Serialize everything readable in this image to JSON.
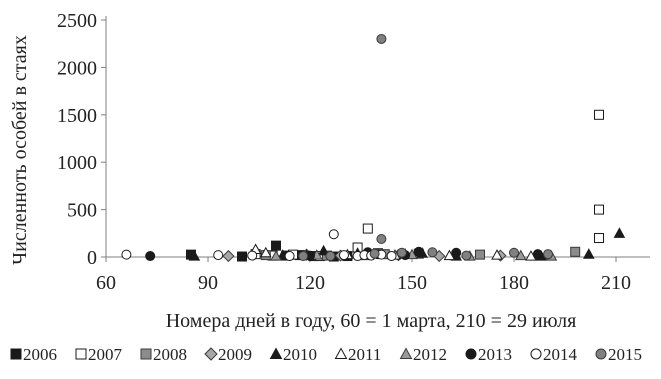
{
  "chart_data": {
    "type": "scatter",
    "title": "",
    "xlabel": "Номера дней в году, 60 = 1 марта, 210 = 29 июля",
    "ylabel": "Численноть особей в стаях",
    "xlim": [
      60,
      220
    ],
    "ylim": [
      0,
      2500
    ],
    "x_ticks": [
      60,
      90,
      120,
      150,
      180,
      210
    ],
    "y_ticks": [
      0,
      500,
      1000,
      1500,
      2000,
      2500
    ],
    "grid": false,
    "legend_position": "bottom",
    "series": [
      {
        "name": "2006",
        "marker": "square",
        "style": "filled",
        "color": "#1a1a1a",
        "points": [
          [
            85,
            25
          ],
          [
            100,
            5
          ],
          [
            110,
            120
          ],
          [
            113,
            15
          ],
          [
            117,
            20
          ],
          [
            121,
            10
          ],
          [
            127,
            5
          ],
          [
            131,
            10
          ]
        ]
      },
      {
        "name": "2007",
        "marker": "square",
        "style": "hollow",
        "color": "#1a1a1a",
        "points": [
          [
            104,
            30
          ],
          [
            109,
            15
          ],
          [
            115,
            25
          ],
          [
            123,
            10
          ],
          [
            134,
            100
          ],
          [
            137,
            300
          ],
          [
            140,
            40
          ],
          [
            205,
            200
          ],
          [
            205,
            500
          ],
          [
            205,
            1500
          ]
        ]
      },
      {
        "name": "2008",
        "marker": "square",
        "style": "filled",
        "color": "#8c8c8c",
        "points": [
          [
            107,
            20
          ],
          [
            125,
            15
          ],
          [
            142,
            30
          ],
          [
            152,
            35
          ],
          [
            170,
            25
          ],
          [
            198,
            55
          ]
        ]
      },
      {
        "name": "2009",
        "marker": "diamond",
        "style": "filled",
        "color": "#a6a6a6",
        "points": [
          [
            96,
            10
          ],
          [
            119,
            25
          ],
          [
            129,
            15
          ],
          [
            146,
            20
          ],
          [
            158,
            10
          ],
          [
            176,
            15
          ]
        ]
      },
      {
        "name": "2010",
        "marker": "triangle",
        "style": "filled",
        "color": "#1a1a1a",
        "points": [
          [
            86,
            10
          ],
          [
            112,
            20
          ],
          [
            124,
            65
          ],
          [
            134,
            40
          ],
          [
            148,
            30
          ],
          [
            153,
            40
          ],
          [
            163,
            10
          ],
          [
            188,
            10
          ],
          [
            202,
            30
          ],
          [
            211,
            250
          ]
        ]
      },
      {
        "name": "2011",
        "marker": "triangle",
        "style": "hollow",
        "color": "#1a1a1a",
        "points": [
          [
            104,
            80
          ],
          [
            107,
            45
          ],
          [
            119,
            15
          ],
          [
            131,
            25
          ],
          [
            145,
            20
          ],
          [
            161,
            15
          ],
          [
            175,
            20
          ],
          [
            185,
            10
          ]
        ]
      },
      {
        "name": "2012",
        "marker": "triangle",
        "style": "filled",
        "color": "#999999",
        "points": [
          [
            110,
            10
          ],
          [
            122,
            20
          ],
          [
            136,
            15
          ],
          [
            150,
            25
          ],
          [
            167,
            10
          ],
          [
            182,
            15
          ],
          [
            191,
            10
          ]
        ]
      },
      {
        "name": "2013",
        "marker": "circle",
        "style": "filled",
        "color": "#1a1a1a",
        "points": [
          [
            73,
            10
          ],
          [
            120,
            15
          ],
          [
            137,
            50
          ],
          [
            140,
            30
          ],
          [
            148,
            20
          ],
          [
            152,
            55
          ],
          [
            163,
            45
          ],
          [
            187,
            30
          ]
        ]
      },
      {
        "name": "2014",
        "marker": "circle",
        "style": "hollow",
        "color": "#1a1a1a",
        "points": [
          [
            66,
            25
          ],
          [
            93,
            20
          ],
          [
            103,
            15
          ],
          [
            114,
            10
          ],
          [
            127,
            240
          ],
          [
            130,
            20
          ],
          [
            134,
            10
          ],
          [
            136,
            20
          ],
          [
            138,
            15
          ],
          [
            141,
            25
          ],
          [
            144,
            10
          ]
        ]
      },
      {
        "name": "2015",
        "marker": "circle",
        "style": "filled",
        "color": "#808080",
        "points": [
          [
            118,
            10
          ],
          [
            126,
            10
          ],
          [
            139,
            35
          ],
          [
            141,
            2300
          ],
          [
            141,
            190
          ],
          [
            147,
            45
          ],
          [
            156,
            50
          ],
          [
            166,
            15
          ],
          [
            180,
            45
          ],
          [
            190,
            30
          ]
        ]
      }
    ]
  }
}
